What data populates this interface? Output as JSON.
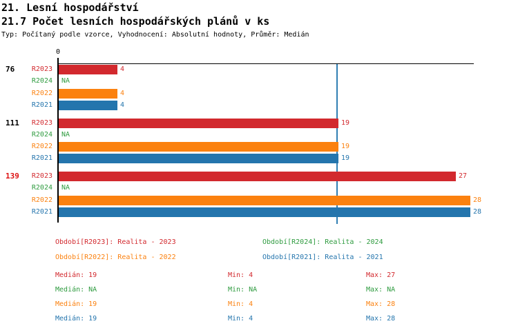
{
  "header": {
    "title": "21. Lesní hospodářství",
    "subtitle": "21.7 Počet lesních hospodářských plánů v ks",
    "meta": "Typ: Počítaný podle vzorce, Vyhodnocení: Absolutní hodnoty, Průměr: Medián"
  },
  "colors": {
    "R2023": "#d2292e",
    "R2024": "#2e9b3f",
    "R2022": "#fb810f",
    "R2021": "#2475ad",
    "axis": "#000000",
    "median_line": "#2f7eb3",
    "group_label_default": "#000000",
    "group_label_highlight": "#dd1111"
  },
  "chart_data": {
    "type": "bar",
    "orientation": "horizontal",
    "title": "21.7 Počet lesních hospodářských plánů v ks",
    "xlabel": "",
    "ylabel": "",
    "xlim": [
      0,
      28.3
    ],
    "grid": false,
    "zero_label": "0",
    "median_line_value": 19,
    "series_order": [
      "R2023",
      "R2024",
      "R2022",
      "R2021"
    ],
    "groups": [
      {
        "label": "76",
        "label_color": "#000000",
        "values": {
          "R2023": 4,
          "R2024": null,
          "R2022": 4,
          "R2021": 4
        },
        "displays": {
          "R2023": "4",
          "R2024": "NA",
          "R2022": "4",
          "R2021": "4"
        }
      },
      {
        "label": "111",
        "label_color": "#000000",
        "values": {
          "R2023": 19,
          "R2024": null,
          "R2022": 19,
          "R2021": 19
        },
        "displays": {
          "R2023": "19",
          "R2024": "NA",
          "R2022": "19",
          "R2021": "19"
        }
      },
      {
        "label": "139",
        "label_color": "#dd1111",
        "values": {
          "R2023": 27,
          "R2024": null,
          "R2022": 28,
          "R2021": 28
        },
        "displays": {
          "R2023": "27",
          "R2024": "NA",
          "R2022": "28",
          "R2021": "28"
        }
      }
    ]
  },
  "legend": {
    "items": [
      {
        "series": "R2023",
        "label": "Období[R2023]: Realita - 2023",
        "color": "#d2292e"
      },
      {
        "series": "R2024",
        "label": "Období[R2024]: Realita - 2024",
        "color": "#2e9b3f"
      },
      {
        "series": "R2022",
        "label": "Období[R2022]: Realita - 2022",
        "color": "#fb810f"
      },
      {
        "series": "R2021",
        "label": "Období[R2021]: Realita - 2021",
        "color": "#2475ad"
      }
    ]
  },
  "stats": {
    "rows": [
      {
        "series": "R2023",
        "color": "#d2292e",
        "median": "Medián: 19",
        "min": "Min: 4",
        "max": "Max: 27"
      },
      {
        "series": "R2024",
        "color": "#2e9b3f",
        "median": "Medián: NA",
        "min": "Min: NA",
        "max": "Max: NA"
      },
      {
        "series": "R2022",
        "color": "#fb810f",
        "median": "Medián: 19",
        "min": "Min: 4",
        "max": "Max: 28"
      },
      {
        "series": "R2021",
        "color": "#2475ad",
        "median": "Medián: 19",
        "min": "Min: 4",
        "max": "Max: 28"
      }
    ]
  }
}
